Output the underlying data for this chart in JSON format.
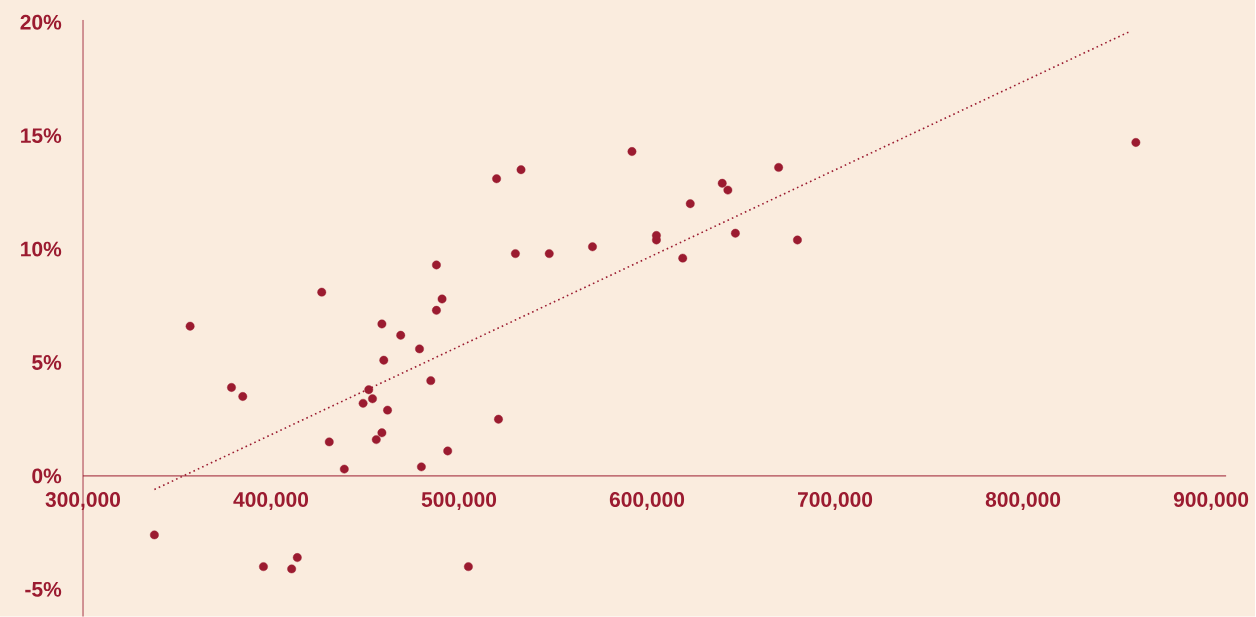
{
  "chart_data": {
    "type": "scatter",
    "xlim": [
      300000,
      908000
    ],
    "ylim": [
      -6.2,
      20.1
    ],
    "xticks": [
      {
        "value": 300000,
        "label": "300,000"
      },
      {
        "value": 400000,
        "label": "400,000"
      },
      {
        "value": 500000,
        "label": "500,000"
      },
      {
        "value": 600000,
        "label": "600,000"
      },
      {
        "value": 700000,
        "label": "700,000"
      },
      {
        "value": 800000,
        "label": "800,000"
      },
      {
        "value": 900000,
        "label": "900,000"
      }
    ],
    "yticks": [
      {
        "value": -5,
        "label": "-5%"
      },
      {
        "value": 0,
        "label": "0%"
      },
      {
        "value": 5,
        "label": "5%"
      },
      {
        "value": 10,
        "label": "10%"
      },
      {
        "value": 15,
        "label": "15%"
      },
      {
        "value": 20,
        "label": "20%"
      }
    ],
    "grid": false,
    "series": [
      {
        "marker": "circle",
        "color": "#9b1b30",
        "x": [
          338000,
          357000,
          379000,
          385000,
          396000,
          411000,
          414000,
          427000,
          431000,
          439000,
          449000,
          452000,
          454000,
          456000,
          459000,
          459000,
          460000,
          462000,
          469000,
          479000,
          480000,
          485000,
          488000,
          488000,
          491000,
          494000,
          505000,
          520000,
          521000,
          530000,
          533000,
          548000,
          571000,
          592000,
          605000,
          605000,
          619000,
          623000,
          640000,
          643000,
          647000,
          670000,
          680000,
          860000
        ],
        "values": [
          -2.6,
          6.6,
          3.9,
          3.5,
          -4.0,
          -4.1,
          -3.6,
          8.1,
          1.5,
          0.3,
          3.2,
          3.8,
          3.4,
          1.6,
          1.9,
          6.7,
          5.1,
          2.9,
          6.2,
          5.6,
          0.4,
          4.2,
          7.3,
          9.3,
          7.8,
          1.1,
          -4.0,
          13.1,
          2.5,
          9.8,
          13.5,
          9.8,
          10.1,
          14.3,
          10.4,
          10.6,
          9.6,
          12.0,
          12.9,
          12.6,
          10.7,
          13.6,
          10.4,
          14.7
        ]
      },
      {
        "type": "line",
        "color": "#9b1b30",
        "line_style": "dotted",
        "marker": "none",
        "x": [
          338000,
          857000
        ],
        "values": [
          -0.6,
          19.6
        ]
      }
    ]
  }
}
